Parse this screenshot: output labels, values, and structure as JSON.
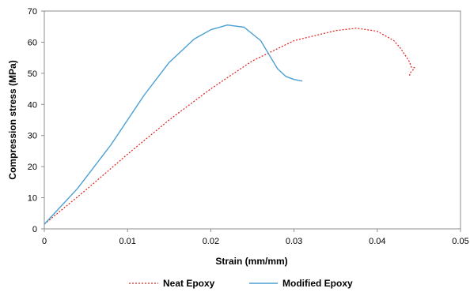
{
  "chart_data": {
    "type": "line",
    "title": "",
    "xlabel": "Strain (mm/mm)",
    "ylabel": "Compression stress (MPa)",
    "xlim": [
      0,
      0.05
    ],
    "ylim": [
      0,
      70
    ],
    "x_ticks": [
      0,
      0.01,
      0.02,
      0.03,
      0.04,
      0.05
    ],
    "x_tick_labels": [
      "0",
      "0.01",
      "0.02",
      "0.03",
      "0.04",
      "0.05"
    ],
    "y_ticks": [
      0,
      10,
      20,
      30,
      40,
      50,
      60,
      70
    ],
    "y_tick_labels": [
      "0",
      "10",
      "20",
      "30",
      "40",
      "50",
      "60",
      "70"
    ],
    "grid": false,
    "legend_position": "bottom",
    "series": [
      {
        "name": "Neat Epoxy",
        "color": "#e0201a",
        "style": "dotted",
        "points": [
          [
            0,
            1.5
          ],
          [
            0.005,
            12.5
          ],
          [
            0.01,
            24
          ],
          [
            0.015,
            35
          ],
          [
            0.02,
            45
          ],
          [
            0.025,
            54
          ],
          [
            0.03,
            60.5
          ],
          [
            0.035,
            63.7
          ],
          [
            0.0375,
            64.5
          ],
          [
            0.04,
            63.5
          ],
          [
            0.042,
            60.5
          ],
          [
            0.0428,
            58
          ],
          [
            0.0433,
            56
          ],
          [
            0.0438,
            54
          ],
          [
            0.0441,
            52
          ],
          [
            0.0445,
            51.8
          ],
          [
            0.0442,
            50.8
          ],
          [
            0.0439,
            50
          ],
          [
            0.0439,
            49
          ]
        ]
      },
      {
        "name": "Modified Epoxy",
        "color": "#4a9fd4",
        "style": "solid",
        "points": [
          [
            0,
            1.5
          ],
          [
            0.004,
            13
          ],
          [
            0.008,
            27
          ],
          [
            0.012,
            43
          ],
          [
            0.015,
            53.5
          ],
          [
            0.018,
            61
          ],
          [
            0.02,
            64
          ],
          [
            0.022,
            65.5
          ],
          [
            0.024,
            64.8
          ],
          [
            0.026,
            60.5
          ],
          [
            0.027,
            56
          ],
          [
            0.028,
            51.5
          ],
          [
            0.029,
            49
          ],
          [
            0.03,
            48
          ],
          [
            0.031,
            47.5
          ]
        ]
      }
    ]
  }
}
